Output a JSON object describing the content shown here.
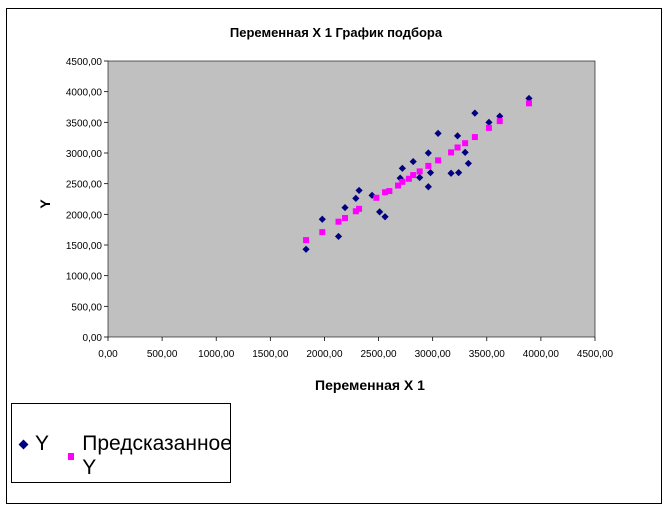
{
  "chart_data": {
    "type": "scatter",
    "title": "Переменная X 1 График подбора",
    "xlabel": "Переменная X 1",
    "ylabel": "Y",
    "xlim": [
      0,
      4500
    ],
    "ylim": [
      0,
      4500
    ],
    "x_ticks": [
      "0,00",
      "500,00",
      "1000,00",
      "1500,00",
      "2000,00",
      "2500,00",
      "3000,00",
      "3500,00",
      "4000,00",
      "4500,00"
    ],
    "y_ticks": [
      "0,00",
      "500,00",
      "1000,00",
      "1500,00",
      "2000,00",
      "2500,00",
      "3000,00",
      "3500,00",
      "4000,00",
      "4500,00"
    ],
    "grid": false,
    "plot_background": "#c0c0c0",
    "legend_position": "bottom-left",
    "series": [
      {
        "name": "Y",
        "marker": "diamond",
        "color": "#000080",
        "points": [
          [
            1830,
            1430
          ],
          [
            1980,
            1920
          ],
          [
            2130,
            1640
          ],
          [
            2190,
            2110
          ],
          [
            2290,
            2260
          ],
          [
            2320,
            2390
          ],
          [
            2440,
            2310
          ],
          [
            2510,
            2040
          ],
          [
            2560,
            1960
          ],
          [
            2700,
            2590
          ],
          [
            2720,
            2750
          ],
          [
            2820,
            2860
          ],
          [
            2880,
            2600
          ],
          [
            2960,
            2450
          ],
          [
            2960,
            3000
          ],
          [
            2980,
            2680
          ],
          [
            3050,
            3320
          ],
          [
            3170,
            2670
          ],
          [
            3230,
            3280
          ],
          [
            3240,
            2680
          ],
          [
            3300,
            3010
          ],
          [
            3330,
            2830
          ],
          [
            3390,
            3650
          ],
          [
            3520,
            3500
          ],
          [
            3620,
            3600
          ],
          [
            3890,
            3890
          ]
        ]
      },
      {
        "name": "Предсказанное Y",
        "marker": "square",
        "color": "#ff00ff",
        "points": [
          [
            1830,
            1580
          ],
          [
            1980,
            1710
          ],
          [
            2130,
            1880
          ],
          [
            2190,
            1940
          ],
          [
            2290,
            2050
          ],
          [
            2320,
            2090
          ],
          [
            2480,
            2270
          ],
          [
            2560,
            2360
          ],
          [
            2600,
            2380
          ],
          [
            2680,
            2470
          ],
          [
            2720,
            2530
          ],
          [
            2780,
            2580
          ],
          [
            2820,
            2640
          ],
          [
            2880,
            2700
          ],
          [
            2960,
            2790
          ],
          [
            3050,
            2880
          ],
          [
            3170,
            3010
          ],
          [
            3230,
            3090
          ],
          [
            3300,
            3160
          ],
          [
            3390,
            3260
          ],
          [
            3520,
            3410
          ],
          [
            3620,
            3520
          ],
          [
            3890,
            3810
          ]
        ]
      }
    ]
  }
}
